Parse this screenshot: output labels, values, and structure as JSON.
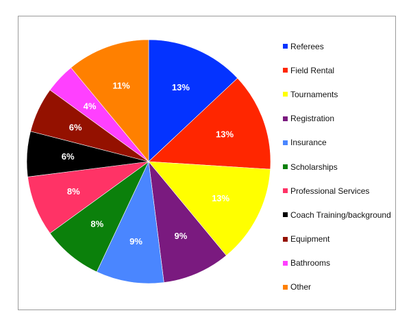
{
  "chart_data": {
    "type": "pie",
    "title": "",
    "start_angle_deg": 0,
    "direction": "clockwise",
    "legend_position": "right",
    "slices": [
      {
        "label": "Referees",
        "value": 13,
        "value_label": "13%",
        "color": "#0433ff"
      },
      {
        "label": "Field Rental",
        "value": 13,
        "value_label": "13%",
        "color": "#ff2600"
      },
      {
        "label": "Tournaments",
        "value": 13,
        "value_label": "13%",
        "color": "#ffff00"
      },
      {
        "label": "Registration",
        "value": 9,
        "value_label": "9%",
        "color": "#7a1a7f"
      },
      {
        "label": "Insurance",
        "value": 9,
        "value_label": "9%",
        "color": "#4a86ff"
      },
      {
        "label": "Scholarships",
        "value": 8,
        "value_label": "8%",
        "color": "#0b800b"
      },
      {
        "label": "Professional Services",
        "value": 8,
        "value_label": "8%",
        "color": "#ff3366"
      },
      {
        "label": "Coach Training/background",
        "value": 6,
        "value_label": "6%",
        "color": "#000000"
      },
      {
        "label": "Equipment",
        "value": 6,
        "value_label": "6%",
        "color": "#941100"
      },
      {
        "label": "Bathrooms",
        "value": 4,
        "value_label": "4%",
        "color": "#ff40ff"
      },
      {
        "label": "Other",
        "value": 11,
        "value_label": "11%",
        "color": "#ff8000"
      }
    ]
  }
}
